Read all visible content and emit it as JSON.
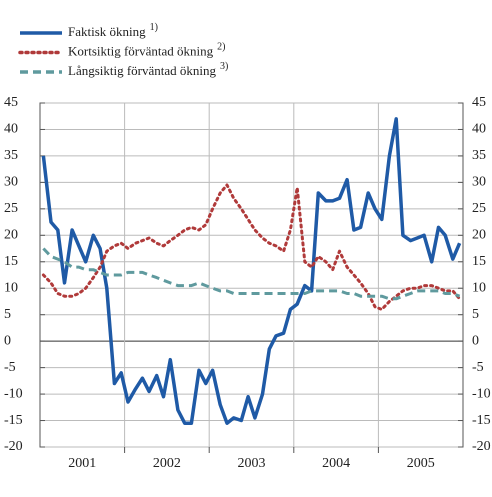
{
  "chart_data": {
    "type": "line",
    "x": [
      2001.04,
      2001.13,
      2001.21,
      2001.29,
      2001.38,
      2001.46,
      2001.54,
      2001.63,
      2001.71,
      2001.79,
      2001.88,
      2001.96,
      2002.04,
      2002.13,
      2002.21,
      2002.29,
      2002.38,
      2002.46,
      2002.54,
      2002.63,
      2002.71,
      2002.79,
      2002.88,
      2002.96,
      2003.04,
      2003.13,
      2003.21,
      2003.29,
      2003.38,
      2003.46,
      2003.54,
      2003.63,
      2003.71,
      2003.79,
      2003.88,
      2003.96,
      2004.04,
      2004.13,
      2004.21,
      2004.29,
      2004.38,
      2004.46,
      2004.54,
      2004.63,
      2004.71,
      2004.79,
      2004.88,
      2004.96,
      2005.04,
      2005.13,
      2005.21,
      2005.29,
      2005.38,
      2005.46,
      2005.54,
      2005.63,
      2005.71,
      2005.79,
      2005.88,
      2005.96
    ],
    "xlim": [
      2001,
      2006
    ],
    "xticks": [
      2002,
      2003,
      2004,
      2005
    ],
    "year_labels": [
      {
        "value": 2001.5,
        "label": "2001"
      },
      {
        "value": 2002.5,
        "label": "2002"
      },
      {
        "value": 2003.5,
        "label": "2003"
      },
      {
        "value": 2004.5,
        "label": "2004"
      },
      {
        "value": 2005.5,
        "label": "2005"
      }
    ],
    "ylim": [
      -20,
      45
    ],
    "yticks": [
      -20,
      -15,
      -10,
      -5,
      0,
      5,
      10,
      15,
      20,
      25,
      30,
      35,
      40,
      45
    ],
    "grid": true,
    "series": [
      {
        "name": "Faktisk ökning",
        "note": "1)",
        "color": "#1f5aa6",
        "style": "solid",
        "values": [
          35,
          22.5,
          21,
          11,
          21,
          18,
          15,
          20,
          17.5,
          10,
          -8,
          -6,
          -11.5,
          -9,
          -7,
          -9.5,
          -6.5,
          -10.5,
          -3.5,
          -13,
          -15.5,
          -15.5,
          -5.5,
          -8,
          -5.5,
          -12,
          -15.5,
          -14.5,
          -15,
          -10.5,
          -14.5,
          -10,
          -1.5,
          1,
          1.5,
          6,
          7,
          10.5,
          9.5,
          28,
          26.5,
          26.5,
          27,
          30.5,
          21,
          21.5,
          28,
          25,
          23,
          35,
          42,
          20,
          19,
          19.5,
          20,
          15,
          21.5,
          20,
          15.5,
          18.5
        ]
      },
      {
        "name": "Kortsiktig förväntad ökning",
        "note": "2)",
        "color": "#b03a3a",
        "style": "dotted",
        "values": [
          12.5,
          11,
          9,
          8.5,
          8.5,
          9,
          10,
          12,
          14,
          17,
          18,
          18.5,
          17.5,
          18.5,
          19,
          19.5,
          18.5,
          18,
          19,
          20,
          21,
          21.5,
          21,
          22,
          25,
          28,
          29.5,
          27,
          25,
          23,
          21,
          19.5,
          18.5,
          18,
          17,
          21,
          29,
          15,
          14,
          16,
          15,
          13.5,
          17,
          14,
          12.5,
          11,
          9,
          6.5,
          6,
          7.5,
          8.5,
          9.5,
          10,
          10,
          10.5,
          10.5,
          10,
          9.5,
          9.5,
          8
        ]
      },
      {
        "name": "Långsiktig förväntad ökning",
        "note": "3)",
        "color": "#5f9a9e",
        "style": "dashed",
        "values": [
          17.5,
          16,
          15.5,
          15,
          14,
          14,
          13.5,
          13.5,
          13,
          12.5,
          12.5,
          12.5,
          13,
          13,
          13,
          12.5,
          12,
          11.5,
          11,
          10.5,
          10.5,
          10.5,
          11,
          10.5,
          10,
          9.5,
          9.5,
          9,
          9,
          9,
          9,
          9,
          9,
          9,
          9,
          9,
          9,
          9,
          9.5,
          9.5,
          9.5,
          9.5,
          9.5,
          9,
          9,
          8.5,
          8.5,
          8.5,
          8.5,
          8,
          8,
          8.5,
          9,
          9.5,
          9.5,
          9.5,
          9.5,
          9,
          9,
          8.5
        ]
      }
    ]
  }
}
